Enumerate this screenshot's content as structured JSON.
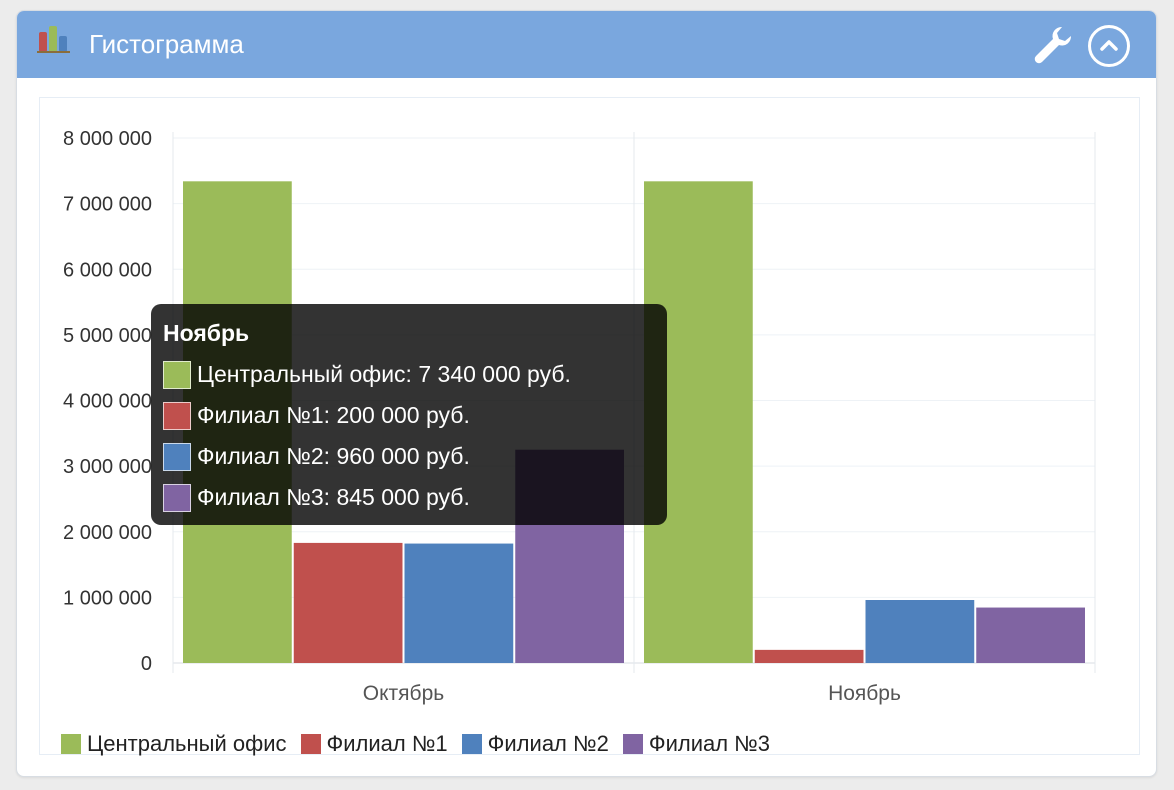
{
  "widget": {
    "title": "Гистограмма",
    "icon": "bar-chart-icon",
    "actions": {
      "settings_icon": "wrench-icon",
      "collapse_icon": "chevron-up-circle-icon"
    }
  },
  "chart_data": {
    "type": "bar",
    "title": "",
    "xlabel": "",
    "ylabel": "",
    "categories": [
      "Октябрь",
      "Ноябрь"
    ],
    "series": [
      {
        "name": "Центральный офис",
        "color": "#9bbb59",
        "values": [
          7340000,
          7340000
        ]
      },
      {
        "name": "Филиал №1",
        "color": "#c0504d",
        "values": [
          1830000,
          200000
        ]
      },
      {
        "name": "Филиал №2",
        "color": "#4f81bd",
        "values": [
          1820000,
          960000
        ]
      },
      {
        "name": "Филиал №3",
        "color": "#8064a2",
        "values": [
          3250000,
          845000
        ]
      }
    ],
    "ylim": [
      0,
      8000000
    ],
    "yticks": [
      0,
      1000000,
      2000000,
      3000000,
      4000000,
      5000000,
      6000000,
      7000000,
      8000000
    ],
    "ytick_labels": [
      "0",
      "1 000 000",
      "2 000 000",
      "3 000 000",
      "4 000 000",
      "5 000 000",
      "6 000 000",
      "7 000 000",
      "8 000 000"
    ],
    "grid": true,
    "legend_position": "bottom-left"
  },
  "tooltip": {
    "title": "Ноябрь",
    "rows": [
      {
        "text": "Центральный офис: 7 340 000 руб.",
        "color": "#9bbb59"
      },
      {
        "text": "Филиал №1: 200 000 руб.",
        "color": "#c0504d"
      },
      {
        "text": "Филиал №2: 960 000 руб.",
        "color": "#4f81bd"
      },
      {
        "text": "Филиал №3: 845 000 руб.",
        "color": "#8064a2"
      }
    ]
  }
}
